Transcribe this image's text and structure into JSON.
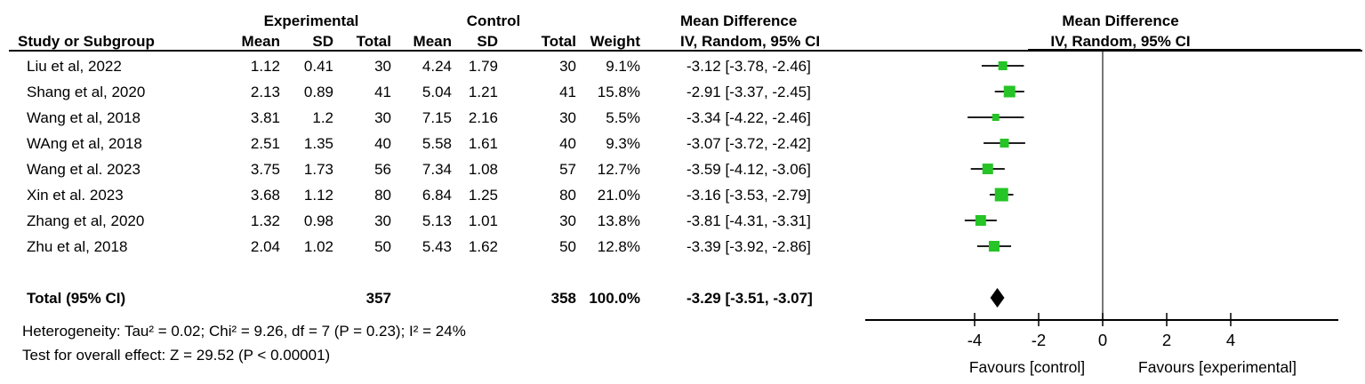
{
  "headers": {
    "group_experimental": "Experimental",
    "group_control": "Control",
    "md_left_line1": "Mean Difference",
    "md_left_line2": "IV, Random, 95% CI",
    "md_right_line1": "Mean Difference",
    "md_right_line2": "IV, Random, 95% CI",
    "study": "Study or Subgroup",
    "exp_mean": "Mean",
    "exp_sd": "SD",
    "exp_total": "Total",
    "ctl_mean": "Mean",
    "ctl_sd": "SD",
    "ctl_total": "Total",
    "weight": "Weight"
  },
  "chart_data": {
    "type": "forest",
    "effect_measure": "Mean Difference",
    "model": "IV, Random, 95% CI",
    "marker_color": "#26c426",
    "diamond_color": "#000000",
    "axis": {
      "ticks": [
        -4,
        -2,
        0,
        2,
        4
      ],
      "range": [
        -7.4,
        7.4
      ],
      "favours_left": "Favours [control]",
      "favours_right": "Favours [experimental]"
    },
    "studies": [
      {
        "study": "Liu et al, 2022",
        "exp_mean": "1.12",
        "exp_sd": "0.41",
        "exp_total": "30",
        "ctl_mean": "4.24",
        "ctl_sd": "1.79",
        "ctl_total": "30",
        "weight": "9.1%",
        "weight_pct": 9.1,
        "md": -3.12,
        "ci_low": -3.78,
        "ci_high": -2.46,
        "ci_label": "-3.12 [-3.78, -2.46]"
      },
      {
        "study": "Shang et al, 2020",
        "exp_mean": "2.13",
        "exp_sd": "0.89",
        "exp_total": "41",
        "ctl_mean": "5.04",
        "ctl_sd": "1.21",
        "ctl_total": "41",
        "weight": "15.8%",
        "weight_pct": 15.8,
        "md": -2.91,
        "ci_low": -3.37,
        "ci_high": -2.45,
        "ci_label": "-2.91 [-3.37, -2.45]"
      },
      {
        "study": "Wang et al, 2018",
        "exp_mean": "3.81",
        "exp_sd": "1.2",
        "exp_total": "30",
        "ctl_mean": "7.15",
        "ctl_sd": "2.16",
        "ctl_total": "30",
        "weight": "5.5%",
        "weight_pct": 5.5,
        "md": -3.34,
        "ci_low": -4.22,
        "ci_high": -2.46,
        "ci_label": "-3.34 [-4.22, -2.46]"
      },
      {
        "study": "WAng et al, 2018",
        "exp_mean": "2.51",
        "exp_sd": "1.35",
        "exp_total": "40",
        "ctl_mean": "5.58",
        "ctl_sd": "1.61",
        "ctl_total": "40",
        "weight": "9.3%",
        "weight_pct": 9.3,
        "md": -3.07,
        "ci_low": -3.72,
        "ci_high": -2.42,
        "ci_label": "-3.07 [-3.72, -2.42]"
      },
      {
        "study": "Wang et al. 2023",
        "exp_mean": "3.75",
        "exp_sd": "1.73",
        "exp_total": "56",
        "ctl_mean": "7.34",
        "ctl_sd": "1.08",
        "ctl_total": "57",
        "weight": "12.7%",
        "weight_pct": 12.7,
        "md": -3.59,
        "ci_low": -4.12,
        "ci_high": -3.06,
        "ci_label": "-3.59 [-4.12, -3.06]"
      },
      {
        "study": "Xin et al. 2023",
        "exp_mean": "3.68",
        "exp_sd": "1.12",
        "exp_total": "80",
        "ctl_mean": "6.84",
        "ctl_sd": "1.25",
        "ctl_total": "80",
        "weight": "21.0%",
        "weight_pct": 21.0,
        "md": -3.16,
        "ci_low": -3.53,
        "ci_high": -2.79,
        "ci_label": "-3.16 [-3.53, -2.79]"
      },
      {
        "study": "Zhang et al, 2020",
        "exp_mean": "1.32",
        "exp_sd": "0.98",
        "exp_total": "30",
        "ctl_mean": "5.13",
        "ctl_sd": "1.01",
        "ctl_total": "30",
        "weight": "13.8%",
        "weight_pct": 13.8,
        "md": -3.81,
        "ci_low": -4.31,
        "ci_high": -3.31,
        "ci_label": "-3.81 [-4.31, -3.31]"
      },
      {
        "study": "Zhu et al, 2018",
        "exp_mean": "2.04",
        "exp_sd": "1.02",
        "exp_total": "50",
        "ctl_mean": "5.43",
        "ctl_sd": "1.62",
        "ctl_total": "50",
        "weight": "12.8%",
        "weight_pct": 12.8,
        "md": -3.39,
        "ci_low": -3.92,
        "ci_high": -2.86,
        "ci_label": "-3.39 [-3.92, -2.86]"
      }
    ],
    "total": {
      "label": "Total (95% CI)",
      "exp_total": "357",
      "ctl_total": "358",
      "weight": "100.0%",
      "md": -3.29,
      "ci_low": -3.51,
      "ci_high": -3.07,
      "ci_label": "-3.29 [-3.51, -3.07]"
    },
    "footnotes": {
      "heterogeneity": "Heterogeneity: Tau² = 0.02; Chi² = 9.26, df = 7 (P = 0.23); I² = 24%",
      "overall_effect": "Test for overall effect: Z = 29.52 (P < 0.00001)"
    }
  }
}
